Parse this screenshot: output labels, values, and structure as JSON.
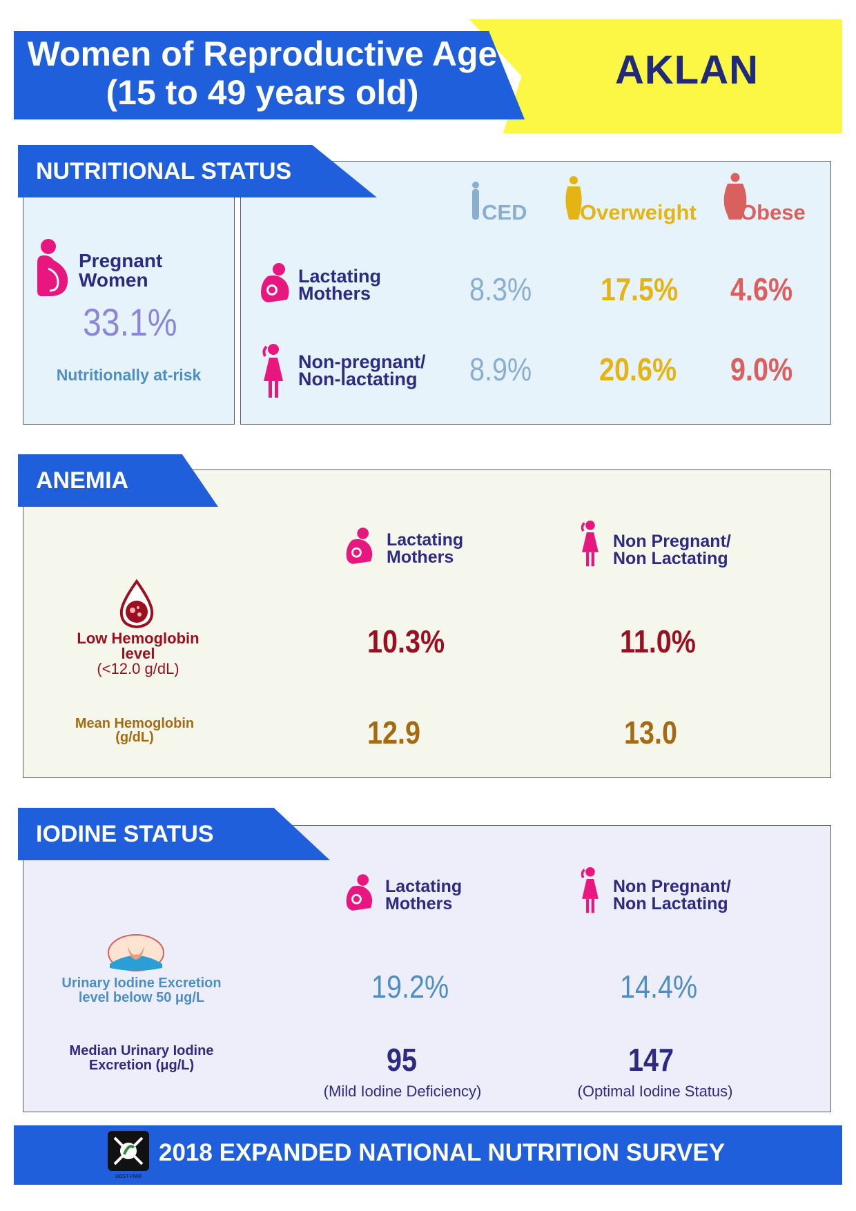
{
  "header": {
    "title_line1": "Women of Reproductive Age",
    "title_line2": "(15 to 49 years old)",
    "region": "AKLAN"
  },
  "nutritional_status": {
    "section_title": "NUTRITIONAL STATUS",
    "pregnant": {
      "label_line1": "Pregnant",
      "label_line2": "Women",
      "value": "33.1%",
      "caption": "Nutritionally at-risk"
    },
    "columns": [
      "CED",
      "Overweight",
      "Obese"
    ],
    "rows": [
      {
        "label_line1": "Lactating",
        "label_line2": "Mothers",
        "values": [
          "8.3%",
          "17.5%",
          "4.6%"
        ]
      },
      {
        "label_line1": "Non-pregnant/",
        "label_line2": "Non-lactating",
        "values": [
          "8.9%",
          "20.6%",
          "9.0%"
        ]
      }
    ],
    "colors": {
      "ced": "#8aaed0",
      "overweight": "#e3b414",
      "obese": "#d9605f",
      "pregnant_value": "#8c86d8",
      "caption": "#4d8fc4"
    }
  },
  "anemia": {
    "section_title": "ANEMIA",
    "col_lactating_line1": "Lactating",
    "col_lactating_line2": "Mothers",
    "col_nonpreg_line1": "Non Pregnant/",
    "col_nonpreg_line2": "Non Lactating",
    "low_hb_line1": "Low Hemoglobin",
    "low_hb_line2": "level",
    "low_hb_line3": "(<12.0 g/dL)",
    "low_hb_values": [
      "10.3%",
      "11.0%"
    ],
    "mean_hb_line1": "Mean Hemoglobin",
    "mean_hb_line2": "(g/dL)",
    "mean_hb_values": [
      "12.9",
      "13.0"
    ],
    "colors": {
      "low": "#9b1020",
      "mean": "#a46b12"
    }
  },
  "iodine": {
    "section_title": "IODINE STATUS",
    "col_lactating_line1": "Lactating",
    "col_lactating_line2": "Mothers",
    "col_nonpreg_line1": "Non Pregnant/",
    "col_nonpreg_line2": "Non Lactating",
    "uie_line1": "Urinary Iodine Excretion",
    "uie_line2": "level below 50 μg/L",
    "uie_values": [
      "19.2%",
      "14.4%"
    ],
    "median_line1": "Median Urinary Iodine",
    "median_line2": "Excretion (μg/L)",
    "median_values": [
      "95",
      "147"
    ],
    "median_notes": [
      "(Mild Iodine Deficiency)",
      "(Optimal Iodine Status)"
    ],
    "colors": {
      "uie": "#4d8fc4",
      "median": "#2d2a82"
    }
  },
  "footer": {
    "text": "2018 EXPANDED NATIONAL NUTRITION SURVEY",
    "logo_text": "DOST-FNRI"
  }
}
